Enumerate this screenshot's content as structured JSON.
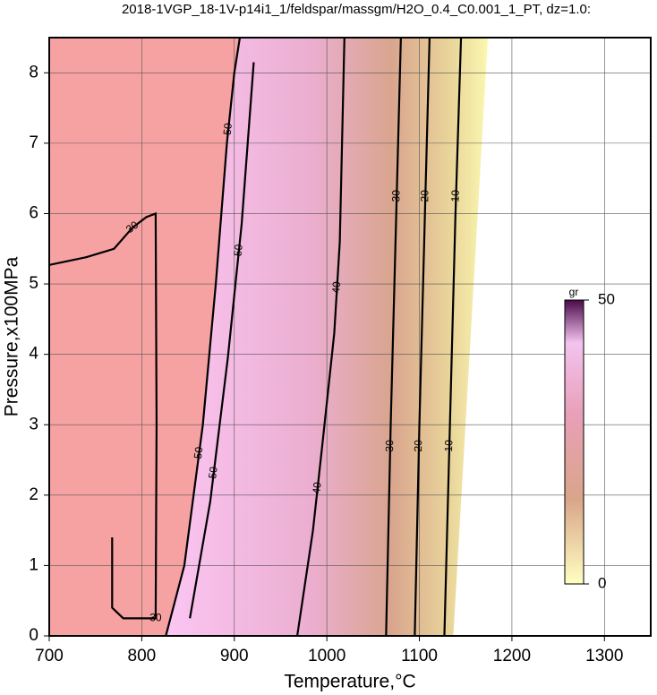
{
  "chart_data": {
    "type": "contour",
    "title": "2018-1VGP_18-1V-p14i1_1/feldspar/massgm/H2O_0.4_C0.001_1_PT, dz=1.0:",
    "xlabel": "Temperature,°C",
    "ylabel": "Pressure,x100MPa",
    "xlim": [
      700,
      1350
    ],
    "ylim": [
      0,
      8.5
    ],
    "xticks": [
      700,
      800,
      900,
      1000,
      1100,
      1200,
      1300
    ],
    "yticks": [
      0,
      1,
      2,
      3,
      4,
      5,
      6,
      7,
      8
    ],
    "grid": true,
    "contours": [
      {
        "level": 10,
        "x": [
          1127,
          1133,
          1139,
          1145
        ],
        "y": [
          0,
          3,
          6,
          8.5
        ]
      },
      {
        "level": 20,
        "x": [
          1095,
          1100,
          1106,
          1111
        ],
        "y": [
          0,
          3,
          6,
          8.5
        ]
      },
      {
        "level": 30,
        "x": [
          1064,
          1069,
          1075,
          1080
        ],
        "y": [
          0,
          3,
          6,
          8.5
        ]
      },
      {
        "level": 40,
        "x": [
          968,
          985,
          995,
          1008,
          1014,
          1019
        ],
        "y": [
          0,
          1.5,
          2.7,
          4.3,
          5.6,
          8.5
        ]
      },
      {
        "level": 50,
        "x": [
          852,
          874,
          893,
          908,
          921
        ],
        "y": [
          0.25,
          1.91,
          3.95,
          5.86,
          8.15
        ]
      },
      {
        "level": 50,
        "x": [
          826,
          846,
          866,
          880,
          892,
          900,
          906
        ],
        "y": [
          0,
          1,
          3,
          5,
          7,
          8,
          8.5
        ]
      },
      {
        "level": 30,
        "x": [
          700,
          740,
          770,
          790,
          805,
          815,
          816,
          815,
          780,
          768,
          768
        ],
        "y": [
          5.27,
          5.38,
          5.5,
          5.8,
          5.95,
          6.0,
          3,
          0.25,
          0.25,
          0.4,
          1.4
        ]
      }
    ],
    "colorbar": {
      "label": "gr",
      "lim": [
        0,
        50
      ],
      "ticks": [
        0,
        50
      ]
    }
  }
}
